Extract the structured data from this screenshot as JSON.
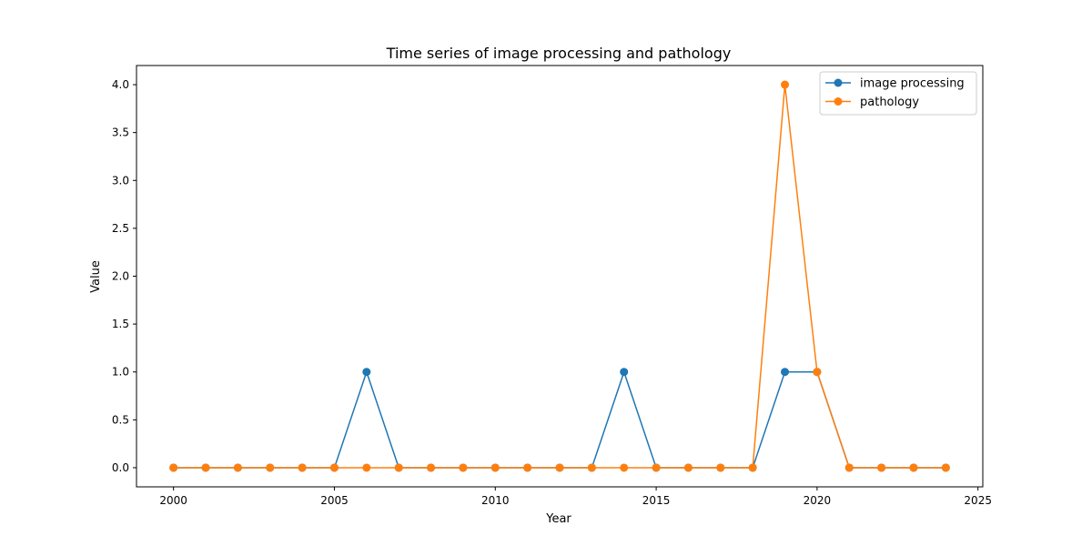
{
  "chart_data": {
    "type": "line",
    "title": "Time series of image processing and pathology",
    "xlabel": "Year",
    "ylabel": "Value",
    "xlim": [
      1998.85,
      2025.15
    ],
    "ylim": [
      -0.2,
      4.2
    ],
    "xticks": [
      2000,
      2005,
      2010,
      2015,
      2020,
      2025
    ],
    "yticks": [
      0.0,
      0.5,
      1.0,
      1.5,
      2.0,
      2.5,
      3.0,
      3.5,
      4.0
    ],
    "xtick_labels": [
      "2000",
      "2005",
      "2010",
      "2015",
      "2020",
      "2025"
    ],
    "ytick_labels": [
      "0.0",
      "0.5",
      "1.0",
      "1.5",
      "2.0",
      "2.5",
      "3.0",
      "3.5",
      "4.0"
    ],
    "grid": false,
    "legend_position": "top-right",
    "x": [
      2000,
      2001,
      2002,
      2003,
      2004,
      2005,
      2006,
      2007,
      2008,
      2009,
      2010,
      2011,
      2012,
      2013,
      2014,
      2015,
      2016,
      2017,
      2018,
      2019,
      2020,
      2021,
      2022,
      2023,
      2024
    ],
    "series": [
      {
        "name": "image processing",
        "color": "#1f77b4",
        "values": [
          0,
          0,
          0,
          0,
          0,
          0,
          1,
          0,
          0,
          0,
          0,
          0,
          0,
          0,
          1,
          0,
          0,
          0,
          0,
          1,
          1,
          0,
          0,
          0,
          0
        ]
      },
      {
        "name": "pathology",
        "color": "#ff7f0e",
        "values": [
          0,
          0,
          0,
          0,
          0,
          0,
          0,
          0,
          0,
          0,
          0,
          0,
          0,
          0,
          0,
          0,
          0,
          0,
          0,
          4,
          1,
          0,
          0,
          0,
          0
        ]
      }
    ]
  }
}
